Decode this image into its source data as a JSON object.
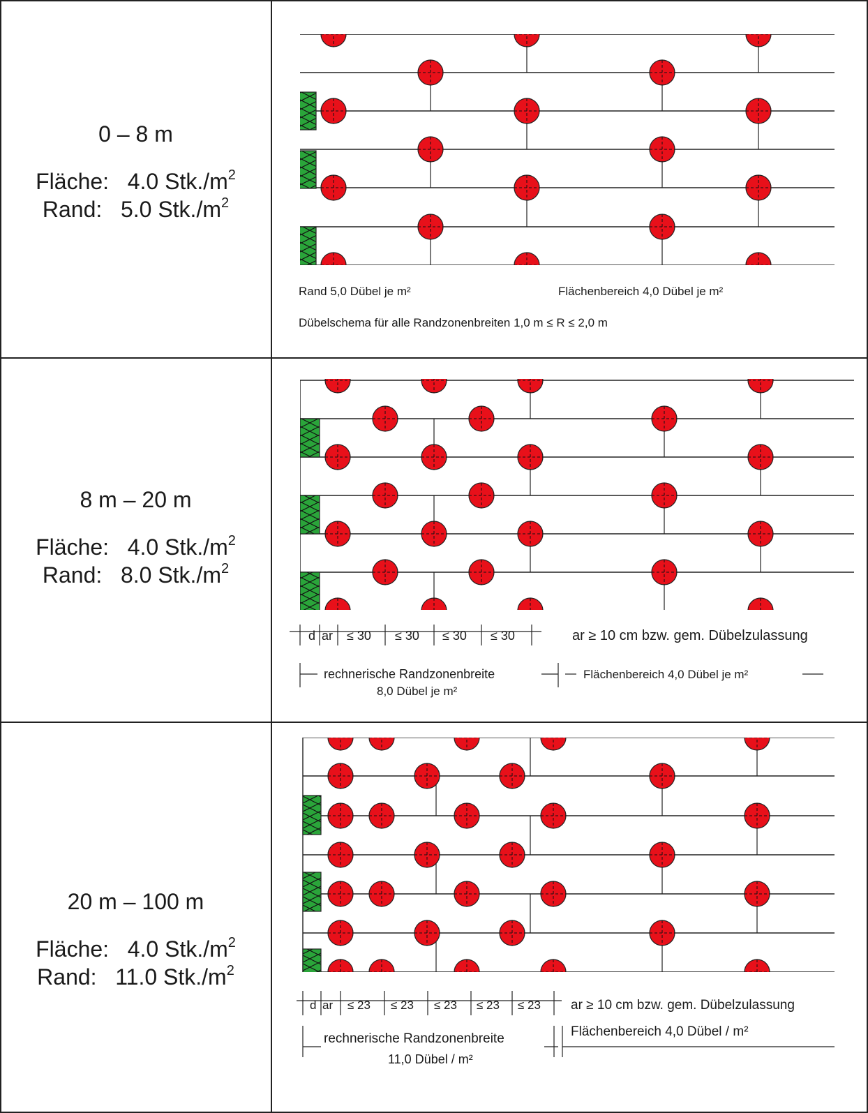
{
  "sections": [
    {
      "range": "0 – 8 m",
      "flaeche_label": "Fläche:",
      "flaeche_value": "4.0 Stk./m",
      "rand_label": "Rand:",
      "rand_value": "5.0 Stk./m",
      "sup": "2",
      "caption_rand": "Rand   5,0 Dübel je m²",
      "caption_flaeche": "Flächenbereich  4,0 Dübel je m²",
      "caption_schema": "Dübelschema für alle Randzonenbreiten  1,0 m  ≤  R  ≤  2,0 m"
    },
    {
      "range": "8 m – 20 m",
      "flaeche_label": "Fläche:",
      "flaeche_value": "4.0 Stk./m",
      "rand_label": "Rand:",
      "rand_value": "8.0 Stk./m",
      "sup": "2",
      "dims": [
        "d",
        "ar",
        "≤ 30",
        "≤ 30",
        "≤ 30",
        "≤ 30"
      ],
      "ar_note": "ar ≥ 10 cm bzw. gem. Dübelzulassung",
      "rz_label": "rechnerische Randzonenbreite",
      "rz_count": "8,0 Dübel je m²",
      "fb_label": "Flächenbereich   4,0 Dübel je m²"
    },
    {
      "range": "20 m – 100 m",
      "flaeche_label": "Fläche:",
      "flaeche_value": "4.0 Stk./m",
      "rand_label": "Rand:",
      "rand_value": "11.0 Stk./m",
      "sup": "2",
      "dims": [
        "d",
        "ar",
        "≤ 23",
        "≤ 23",
        "≤ 23",
        "≤ 23",
        "≤ 23"
      ],
      "ar_note": "ar ≥ 10 cm bzw. gem. Dübelzulassung",
      "rz_label": "rechnerische Randzonenbreite",
      "rz_count": "11,0 Dübel / m²",
      "fb_label": "Flächenbereich   4,0 Dübel / m²"
    }
  ],
  "colors": {
    "dowel": "#e8101a",
    "insulation": "#2aa53a",
    "line": "#222222"
  }
}
